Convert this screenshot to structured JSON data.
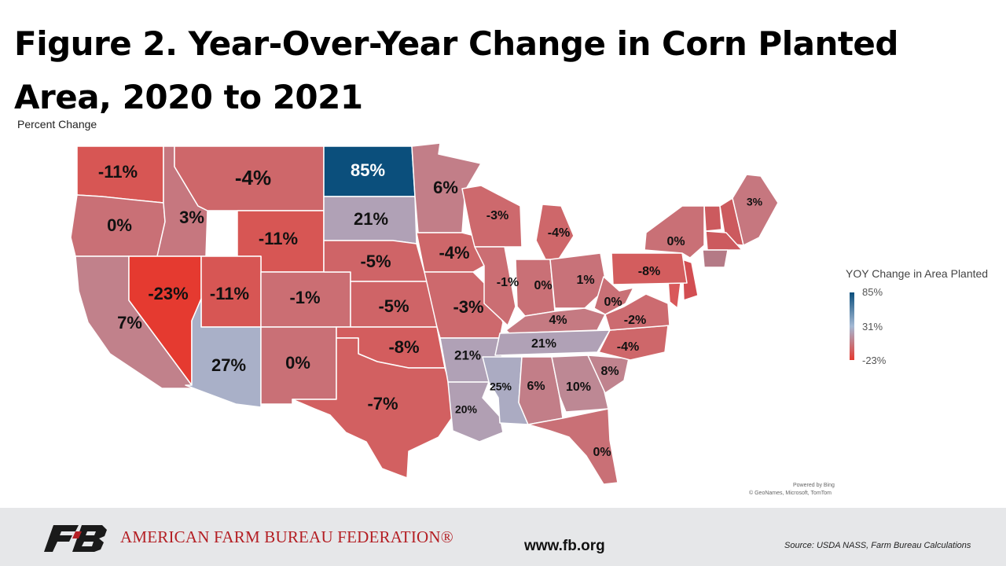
{
  "title": "Figure 2. Year-Over-Year Change in Corn Planted Area, 2020 to 2021",
  "subtitle": "Percent Change",
  "legend": {
    "title": "YOY Change in Area Planted",
    "max": "85%",
    "mid": "31%",
    "min": "-23%",
    "colors": {
      "high": "#0b4f7c",
      "mid": "#a4b9d4",
      "low": "#e53a30"
    }
  },
  "map_credit": {
    "line1": "Powered by Bing",
    "line2": "© GeoNames, Microsoft, TomTom"
  },
  "footer": {
    "org": "AMERICAN FARM BUREAU FEDERATION®",
    "url": "www.fb.org",
    "source": "Source: USDA NASS, Farm Bureau Calculations"
  },
  "chart_data": {
    "type": "choropleth",
    "scale": {
      "min": -23,
      "mid": 31,
      "max": 85
    },
    "states": [
      {
        "state": "WA",
        "value": -11,
        "label": "-11%"
      },
      {
        "state": "OR",
        "value": 0,
        "label": "0%"
      },
      {
        "state": "CA",
        "value": 7,
        "label": "7%"
      },
      {
        "state": "ID",
        "value": 3,
        "label": "3%"
      },
      {
        "state": "NV",
        "value": -23,
        "label": "-23%"
      },
      {
        "state": "MT",
        "value": -4,
        "label": "-4%"
      },
      {
        "state": "WY",
        "value": -11,
        "label": "-11%"
      },
      {
        "state": "UT",
        "value": -11,
        "label": "-11%"
      },
      {
        "state": "AZ",
        "value": 27,
        "label": "27%"
      },
      {
        "state": "CO",
        "value": -1,
        "label": "-1%"
      },
      {
        "state": "NM",
        "value": 0,
        "label": "0%"
      },
      {
        "state": "ND",
        "value": 85,
        "label": "85%"
      },
      {
        "state": "SD",
        "value": 21,
        "label": "21%"
      },
      {
        "state": "NE",
        "value": -5,
        "label": "-5%"
      },
      {
        "state": "KS",
        "value": -5,
        "label": "-5%"
      },
      {
        "state": "OK",
        "value": -8,
        "label": "-8%"
      },
      {
        "state": "TX",
        "value": -7,
        "label": "-7%"
      },
      {
        "state": "MN",
        "value": 6,
        "label": "6%"
      },
      {
        "state": "IA",
        "value": -4,
        "label": "-4%"
      },
      {
        "state": "MO",
        "value": -3,
        "label": "-3%"
      },
      {
        "state": "AR",
        "value": 21,
        "label": "21%"
      },
      {
        "state": "LA",
        "value": 20,
        "label": "20%"
      },
      {
        "state": "WI",
        "value": -3,
        "label": "-3%"
      },
      {
        "state": "IL",
        "value": -1,
        "label": "-1%"
      },
      {
        "state": "MI",
        "value": -4,
        "label": "-4%"
      },
      {
        "state": "IN",
        "value": 0,
        "label": "0%"
      },
      {
        "state": "OH",
        "value": 1,
        "label": "1%"
      },
      {
        "state": "KY",
        "value": 4,
        "label": "4%"
      },
      {
        "state": "TN",
        "value": 21,
        "label": "21%"
      },
      {
        "state": "MS",
        "value": 25,
        "label": "25%"
      },
      {
        "state": "AL",
        "value": 6,
        "label": "6%"
      },
      {
        "state": "GA",
        "value": 10,
        "label": "10%"
      },
      {
        "state": "FL",
        "value": 0,
        "label": "0%"
      },
      {
        "state": "SC",
        "value": 8,
        "label": "8%"
      },
      {
        "state": "NC",
        "value": -4,
        "label": "-4%"
      },
      {
        "state": "VA",
        "value": -2,
        "label": "-2%"
      },
      {
        "state": "WV",
        "value": 0,
        "label": "0%"
      },
      {
        "state": "PA",
        "value": -8,
        "label": "-8%"
      },
      {
        "state": "NY",
        "value": 0,
        "label": "0%"
      },
      {
        "state": "ME",
        "value": 3,
        "label": "3%"
      }
    ]
  }
}
